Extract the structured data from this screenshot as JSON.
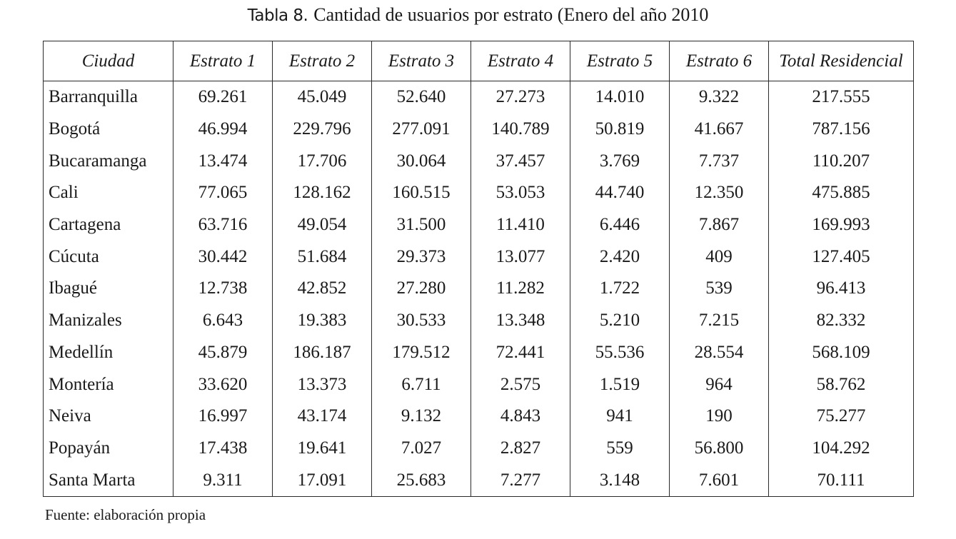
{
  "caption": {
    "label": "Tabla 8.",
    "text": "Cantidad de usuarios por estrato (Enero del año 2010"
  },
  "table": {
    "headers": [
      "Ciudad",
      "Estrato 1",
      "Estrato 2",
      "Estrato 3",
      "Estrato 4",
      "Estrato 5",
      "Estrato 6",
      "Total Residencial"
    ],
    "rows": [
      [
        "Barranquilla",
        "69.261",
        "45.049",
        "52.640",
        "27.273",
        "14.010",
        "9.322",
        "217.555"
      ],
      [
        "Bogotá",
        "46.994",
        "229.796",
        "277.091",
        "140.789",
        "50.819",
        "41.667",
        "787.156"
      ],
      [
        "Bucaramanga",
        "13.474",
        "17.706",
        "30.064",
        "37.457",
        "3.769",
        "7.737",
        "110.207"
      ],
      [
        "Cali",
        "77.065",
        "128.162",
        "160.515",
        "53.053",
        "44.740",
        "12.350",
        "475.885"
      ],
      [
        "Cartagena",
        "63.716",
        "49.054",
        "31.500",
        "11.410",
        "6.446",
        "7.867",
        "169.993"
      ],
      [
        "Cúcuta",
        "30.442",
        "51.684",
        "29.373",
        "13.077",
        "2.420",
        "409",
        "127.405"
      ],
      [
        "Ibagué",
        "12.738",
        "42.852",
        "27.280",
        "11.282",
        "1.722",
        "539",
        "96.413"
      ],
      [
        "Manizales",
        "6.643",
        "19.383",
        "30.533",
        "13.348",
        "5.210",
        "7.215",
        "82.332"
      ],
      [
        "Medellín",
        "45.879",
        "186.187",
        "179.512",
        "72.441",
        "55.536",
        "28.554",
        "568.109"
      ],
      [
        "Montería",
        "33.620",
        "13.373",
        "6.711",
        "2.575",
        "1.519",
        "964",
        "58.762"
      ],
      [
        "Neiva",
        "16.997",
        "43.174",
        "9.132",
        "4.843",
        "941",
        "190",
        "75.277"
      ],
      [
        "Popayán",
        "17.438",
        "19.641",
        "7.027",
        "2.827",
        "559",
        "56.800",
        "104.292"
      ],
      [
        "Santa Marta",
        "9.311",
        "17.091",
        "25.683",
        "7.277",
        "3.148",
        "7.601",
        "70.111"
      ]
    ]
  },
  "source": "Fuente: elaboración propia"
}
